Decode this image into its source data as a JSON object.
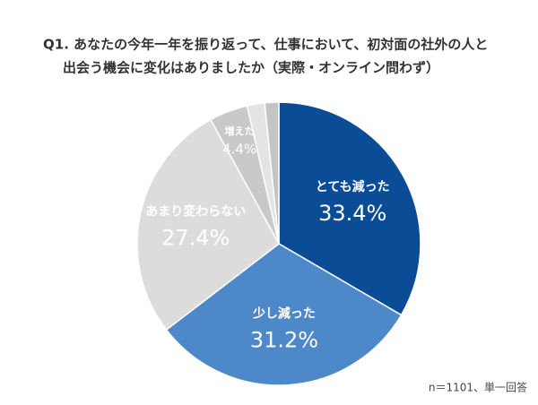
{
  "chart_data": {
    "type": "pie",
    "title": [
      "Q1. あなたの今年一年を振り返って、仕事において、初対面の社外の人と",
      "出会う機会に変化はありましたか（実際・オンライン問わず）"
    ],
    "categories": [
      "とても減った",
      "少し減った",
      "あまり変わらない",
      "増えた",
      null,
      null
    ],
    "values": [
      33.4,
      31.2,
      27.4,
      4.4,
      2.0,
      1.6
    ],
    "value_labels": [
      "33.4%",
      "31.2%",
      "27.4%",
      "4.4%",
      null,
      null
    ],
    "colors": [
      "#0b4c97",
      "#4d88c9",
      "#dcdcdc",
      "#c9c9c9",
      "#e4e4e4",
      "#c4c4c4"
    ],
    "note": "n＝1101、単一回答"
  }
}
